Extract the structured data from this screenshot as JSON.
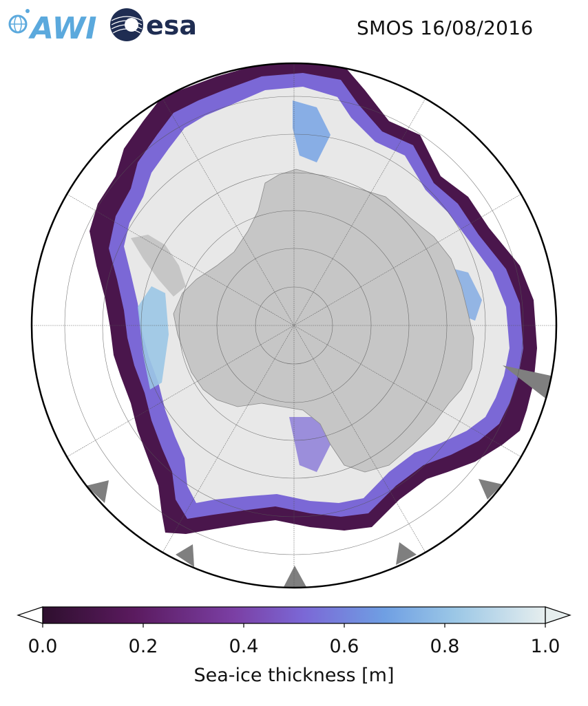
{
  "header": {
    "logo_awi_text": "AWI",
    "logo_esa_text": "esa",
    "title": "SMOS 16/08/2016"
  },
  "map": {
    "projection": "south-polar-stereographic",
    "graticule": true,
    "land_color": "#c6c6c6",
    "ocean_no_ice_color": "#ffffff",
    "thick_ice_color": "#e8e8e8",
    "missing_data_color": "#7f7f7f"
  },
  "colorbar": {
    "label": "Sea-ice thickness [m]",
    "min": 0.0,
    "max": 1.0,
    "ticks": [
      "0.0",
      "0.2",
      "0.4",
      "0.6",
      "0.8",
      "1.0"
    ],
    "extend": "both",
    "colormap_stops": [
      "#2e0f2e",
      "#5a1a5e",
      "#7b3fa4",
      "#7b68d6",
      "#6f9fe3",
      "#9bc7e6",
      "#e6eeee"
    ]
  }
}
